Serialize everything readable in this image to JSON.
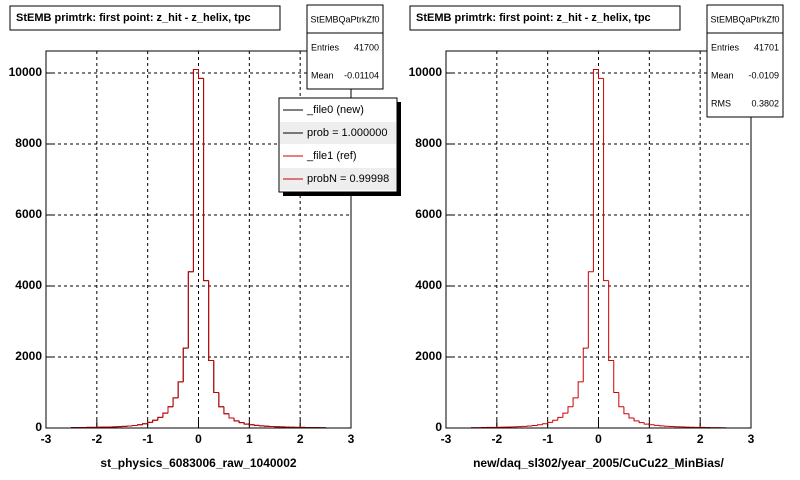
{
  "chart_data": [
    {
      "type": "histogram",
      "title": "StEMB primtrk: first point: z_hit - z_helix, tpc",
      "x_label": "st_physics_6083006_raw_1040002",
      "stats_title": "StEMBQaPtrkZf0",
      "stats": [
        {
          "label": "Entries",
          "value": 41700
        },
        {
          "label": "Mean",
          "value": -0.01104
        }
      ],
      "bins": [
        -2.5,
        -2.4,
        -2.3,
        -2.2,
        -2.1,
        -2.0,
        -1.9,
        -1.8,
        -1.7,
        -1.6,
        -1.5,
        -1.4,
        -1.3,
        -1.2,
        -1.1,
        -1.0,
        -0.9,
        -0.8,
        -0.7,
        -0.6,
        -0.5,
        -0.4,
        -0.3,
        -0.2,
        -0.1,
        0,
        0.1,
        0.2,
        0.3,
        0.4,
        0.5,
        0.6,
        0.7,
        0.8,
        0.9,
        1.0,
        1.1,
        1.2,
        1.3,
        1.4,
        1.5,
        1.6,
        1.7,
        1.8,
        1.9,
        2.0,
        2.1,
        2.2,
        2.3,
        2.4,
        2.5
      ],
      "series": [
        {
          "name": "_file0 (new)",
          "color": "#000000",
          "values": [
            10,
            12,
            14,
            16,
            18,
            20,
            24,
            28,
            32,
            38,
            45,
            55,
            70,
            90,
            120,
            160,
            220,
            300,
            420,
            600,
            850,
            1300,
            2250,
            4400,
            10100,
            9850,
            4150,
            1900,
            1000,
            600,
            400,
            280,
            200,
            150,
            110,
            90,
            75,
            60,
            50,
            42,
            36,
            30,
            26,
            22,
            19,
            16,
            14,
            12,
            10,
            8
          ]
        },
        {
          "name": "_file1 (ref)",
          "color": "#cc0000",
          "values": [
            10,
            12,
            14,
            16,
            18,
            20,
            24,
            28,
            32,
            38,
            45,
            55,
            70,
            90,
            120,
            160,
            220,
            300,
            420,
            600,
            850,
            1300,
            2250,
            4400,
            10100,
            9850,
            4150,
            1900,
            1000,
            600,
            400,
            280,
            200,
            150,
            110,
            90,
            75,
            60,
            50,
            42,
            36,
            30,
            26,
            22,
            19,
            16,
            14,
            12,
            10,
            8
          ]
        }
      ],
      "legend_notes": [
        {
          "text": "prob = 1.000000",
          "color": "#000000"
        },
        {
          "text": "probN = 0.99998",
          "color": "#cc0000"
        }
      ],
      "xlim": [
        -3,
        3
      ],
      "xticks": [
        -3,
        -2,
        -1,
        0,
        1,
        2,
        3
      ],
      "ylim": [
        0,
        10620
      ],
      "yticks": [
        0,
        2000,
        4000,
        6000,
        8000,
        10000
      ],
      "grid": true
    },
    {
      "type": "histogram",
      "title": "StEMB primtrk: first point: z_hit - z_helix, tpc",
      "x_label": "new/daq_sl302/year_2005/CuCu22_MinBias/",
      "stats_title": "StEMBQaPtrkZf0",
      "stats": [
        {
          "label": "Entries",
          "value": 41701
        },
        {
          "label": "Mean",
          "value": -0.0109
        },
        {
          "label": "RMS",
          "value": 0.3802
        }
      ],
      "bins": [
        -2.5,
        -2.4,
        -2.3,
        -2.2,
        -2.1,
        -2.0,
        -1.9,
        -1.8,
        -1.7,
        -1.6,
        -1.5,
        -1.4,
        -1.3,
        -1.2,
        -1.1,
        -1.0,
        -0.9,
        -0.8,
        -0.7,
        -0.6,
        -0.5,
        -0.4,
        -0.3,
        -0.2,
        -0.1,
        0,
        0.1,
        0.2,
        0.3,
        0.4,
        0.5,
        0.6,
        0.7,
        0.8,
        0.9,
        1.0,
        1.1,
        1.2,
        1.3,
        1.4,
        1.5,
        1.6,
        1.7,
        1.8,
        1.9,
        2.0,
        2.1,
        2.2,
        2.3,
        2.4,
        2.5
      ],
      "series": [
        {
          "color": "#cc0000",
          "values": [
            10,
            12,
            14,
            16,
            18,
            20,
            24,
            28,
            32,
            38,
            45,
            55,
            70,
            90,
            120,
            160,
            220,
            300,
            420,
            600,
            850,
            1300,
            2250,
            4400,
            10100,
            9850,
            4150,
            1900,
            1000,
            600,
            400,
            280,
            200,
            150,
            110,
            90,
            75,
            60,
            50,
            42,
            36,
            30,
            26,
            22,
            19,
            16,
            14,
            12,
            10,
            8
          ]
        }
      ],
      "xlim": [
        -3,
        3
      ],
      "xticks": [
        -3,
        -2,
        -1,
        0,
        1,
        2,
        3
      ],
      "ylim": [
        0,
        10620
      ],
      "yticks": [
        0,
        2000,
        4000,
        6000,
        8000,
        10000
      ],
      "grid": true
    }
  ]
}
